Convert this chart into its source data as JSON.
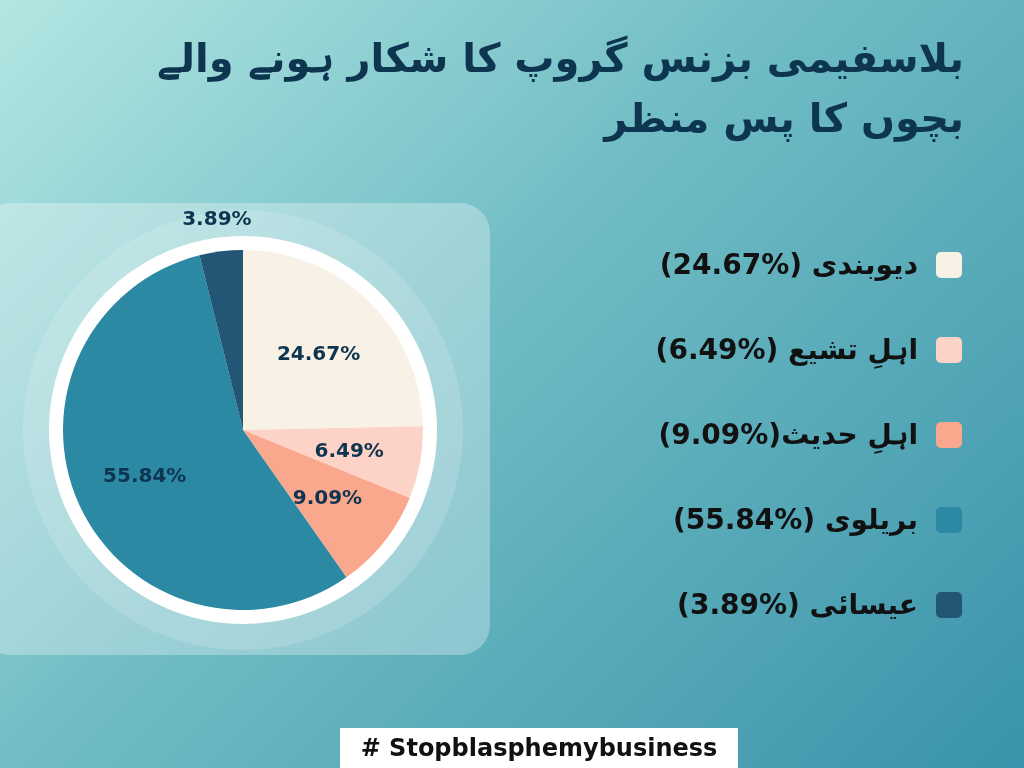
{
  "chart_data": {
    "type": "pie",
    "title": "بلاسفیمی بزنس گروپ کا شکار ہونے والے بچوں کا پس منظر",
    "categories": [
      "دیوبندی (24.67%)",
      "اہلِ تشیع (6.49%)",
      "اہلِ حدیث(9.09%)",
      "بریلوی (55.84%)",
      "عیسائی (3.89%)"
    ],
    "values": [
      24.67,
      6.49,
      9.09,
      55.84,
      3.89
    ],
    "value_labels": [
      "24.67%",
      "6.49%",
      "9.09%",
      "55.84%",
      "3.89%"
    ],
    "colors": [
      "#f8f2e6",
      "#fcd3c6",
      "#f9a88e",
      "#2b89a4",
      "#235674"
    ],
    "legend": "right",
    "annotations": [
      "# Stopblasphemybusiness"
    ]
  }
}
